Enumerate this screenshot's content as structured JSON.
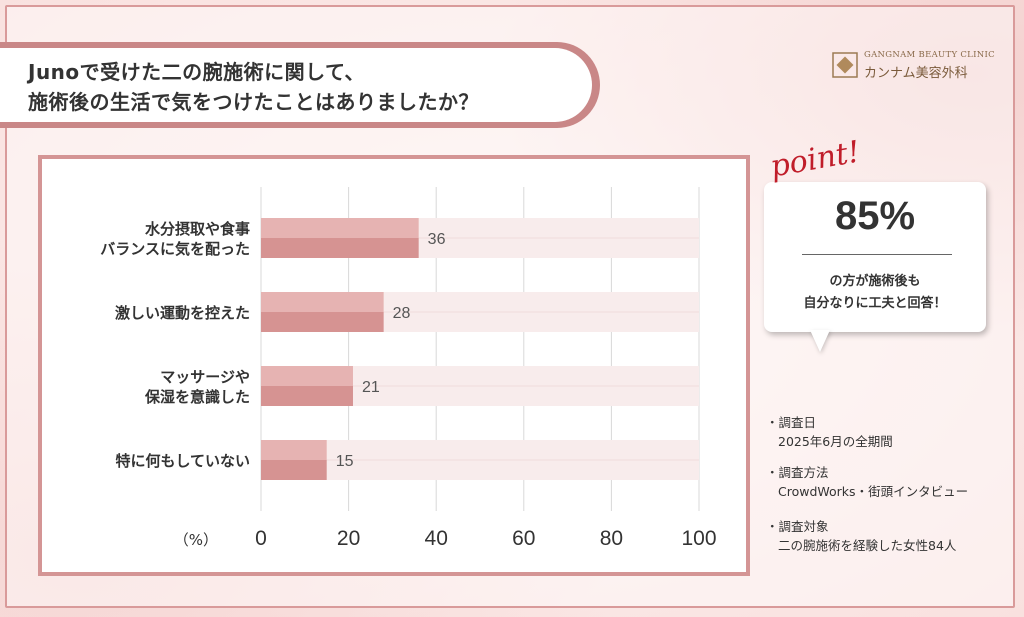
{
  "title": {
    "line1": "Junoで受けた二の腕施術に関して、",
    "line2": "施術後の生活で気をつけたことはありましたか？"
  },
  "logo": {
    "en": "GANGNAM BEAUTY CLINIC",
    "jp": "カンナム美容外科"
  },
  "point": {
    "word": "point!",
    "value": "85%",
    "text1": "の方が施術後も",
    "text2": "自分なりに工夫と回答！"
  },
  "survey": [
    {
      "label": "・調査日",
      "value": "2025年6月の全期間"
    },
    {
      "label": "・調査方法",
      "value": "CrowdWorks・街頭インタビュー"
    },
    {
      "label": "・調査対象",
      "value": "二の腕施術を経験した女性84人"
    }
  ],
  "chart_data": {
    "type": "bar",
    "orientation": "horizontal",
    "categories": [
      [
        "水分摂取や食事",
        "バランスに気を配った"
      ],
      [
        "激しい運動を控えた"
      ],
      [
        "マッサージや",
        "保湿を意識した"
      ],
      [
        "特に何もしていない"
      ]
    ],
    "values": [
      36,
      28,
      21,
      15
    ],
    "xlabel": "（%）",
    "xlim": [
      0,
      100
    ],
    "xticks": [
      0,
      20,
      40,
      60,
      80,
      100
    ],
    "grid": true,
    "colors": {
      "bar_light": "#e6b3b2",
      "bar_dark": "#d69392",
      "track": "#f8ecec",
      "track_line": "#f1dcdc",
      "grid": "#d8d8d8",
      "text": "#333333",
      "value_text": "#555555"
    }
  }
}
